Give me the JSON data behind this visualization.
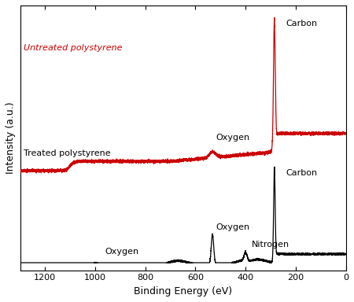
{
  "title": "",
  "xlabel": "Binding Energy (eV)",
  "ylabel": "Intensity (a.u.)",
  "xlim": [
    1300,
    0
  ],
  "ylim": [
    0,
    1.05
  ],
  "background_color": "#ffffff",
  "untreated_label": "Untreated polystyrene",
  "treated_label": "Treated polystyrene",
  "untreated_color": "#cc0000",
  "treated_color": "#000000",
  "xticks": [
    1200,
    1000,
    800,
    600,
    400,
    200,
    0
  ]
}
